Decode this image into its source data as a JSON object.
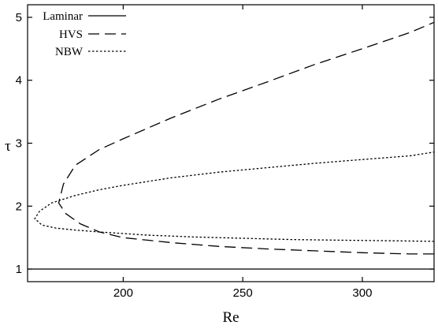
{
  "chart_data": {
    "type": "line",
    "xlabel": "Re",
    "ylabel": "τ",
    "xlim": [
      160,
      330
    ],
    "ylim": [
      0.8,
      5.2
    ],
    "xticks": [
      200,
      250,
      300
    ],
    "yticks": [
      1,
      2,
      3,
      4,
      5
    ],
    "grid": false,
    "legend_position": "top-left",
    "series": [
      {
        "name": "Laminar",
        "dash": "solid",
        "points": [
          [
            160,
            1.0
          ],
          [
            330,
            1.0
          ]
        ]
      },
      {
        "name": "HVS",
        "dash": "long-dash",
        "points": [
          [
            330,
            1.24
          ],
          [
            320,
            1.24
          ],
          [
            300,
            1.26
          ],
          [
            280,
            1.29
          ],
          [
            260,
            1.32
          ],
          [
            240,
            1.36
          ],
          [
            220,
            1.42
          ],
          [
            200,
            1.5
          ],
          [
            190,
            1.59
          ],
          [
            182,
            1.72
          ],
          [
            176,
            1.88
          ],
          [
            173,
            2.05
          ],
          [
            175,
            2.35
          ],
          [
            180,
            2.65
          ],
          [
            190,
            2.9
          ],
          [
            200,
            3.07
          ],
          [
            220,
            3.4
          ],
          [
            240,
            3.7
          ],
          [
            260,
            3.97
          ],
          [
            280,
            4.25
          ],
          [
            300,
            4.5
          ],
          [
            320,
            4.76
          ],
          [
            330,
            4.92
          ]
        ]
      },
      {
        "name": "NBW",
        "dash": "dotted",
        "points": [
          [
            330,
            1.44
          ],
          [
            310,
            1.45
          ],
          [
            290,
            1.46
          ],
          [
            270,
            1.47
          ],
          [
            250,
            1.49
          ],
          [
            230,
            1.51
          ],
          [
            210,
            1.54
          ],
          [
            190,
            1.59
          ],
          [
            180,
            1.62
          ],
          [
            172,
            1.65
          ],
          [
            166,
            1.7
          ],
          [
            163,
            1.8
          ],
          [
            165,
            1.92
          ],
          [
            170,
            2.05
          ],
          [
            180,
            2.17
          ],
          [
            190,
            2.26
          ],
          [
            200,
            2.33
          ],
          [
            220,
            2.45
          ],
          [
            240,
            2.54
          ],
          [
            260,
            2.61
          ],
          [
            280,
            2.68
          ],
          [
            300,
            2.74
          ],
          [
            320,
            2.8
          ],
          [
            330,
            2.86
          ]
        ]
      }
    ]
  }
}
